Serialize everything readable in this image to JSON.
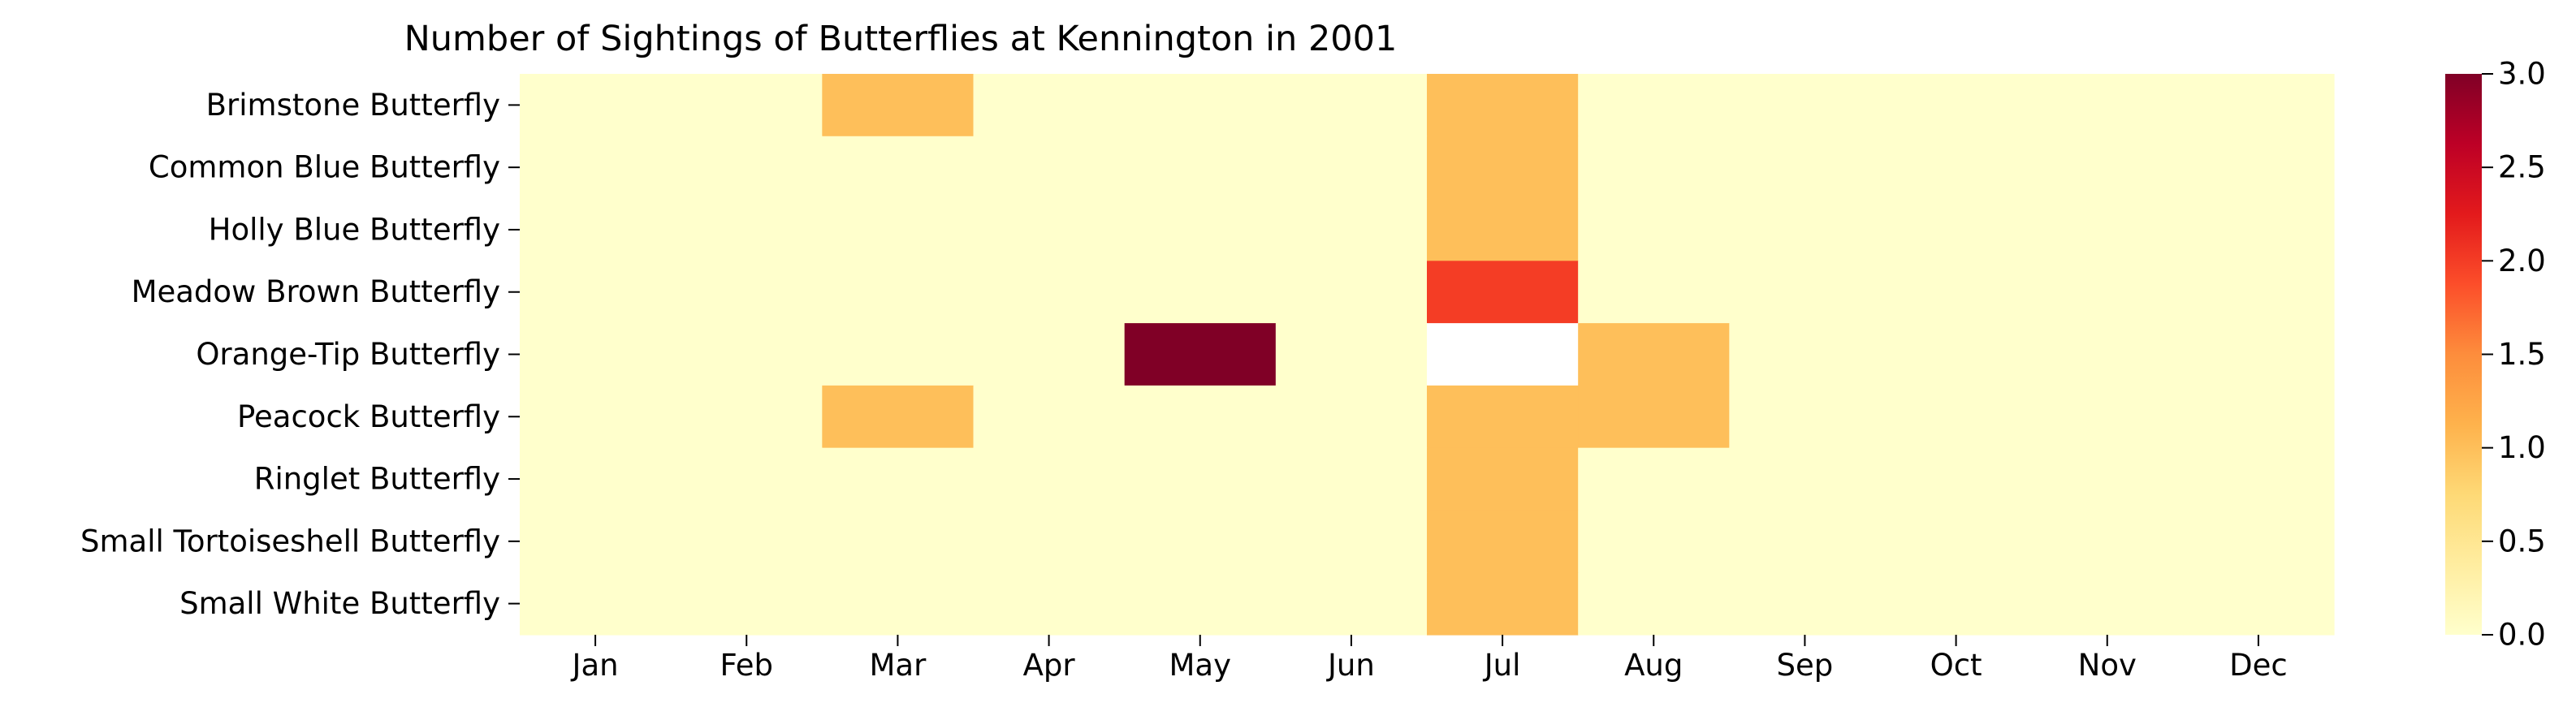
{
  "chart_data": {
    "type": "heatmap",
    "title": "Number of Sightings of Butterflies at Kennington in 2001",
    "xlabel": "",
    "ylabel": "",
    "x_categories": [
      "Jan",
      "Feb",
      "Mar",
      "Apr",
      "May",
      "Jun",
      "Jul",
      "Aug",
      "Sep",
      "Oct",
      "Nov",
      "Dec"
    ],
    "y_categories": [
      "Brimstone Butterfly",
      "Common Blue Butterfly",
      "Holly Blue Butterfly",
      "Meadow Brown Butterfly",
      "Orange-Tip Butterfly",
      "Peacock Butterfly",
      "Ringlet Butterfly",
      "Small Tortoiseshell Butterfly",
      "Small White Butterfly"
    ],
    "values": [
      [
        0,
        0,
        1,
        0,
        0,
        0,
        1,
        0,
        0,
        0,
        0,
        0
      ],
      [
        0,
        0,
        0,
        0,
        0,
        0,
        1,
        0,
        0,
        0,
        0,
        0
      ],
      [
        0,
        0,
        0,
        0,
        0,
        0,
        1,
        0,
        0,
        0,
        0,
        0
      ],
      [
        0,
        0,
        0,
        0,
        0,
        0,
        2,
        0,
        0,
        0,
        0,
        0
      ],
      [
        0,
        0,
        0,
        0,
        3,
        0,
        null,
        1,
        0,
        0,
        0,
        0
      ],
      [
        0,
        0,
        1,
        0,
        0,
        0,
        1,
        1,
        0,
        0,
        0,
        0
      ],
      [
        0,
        0,
        0,
        0,
        0,
        0,
        1,
        0,
        0,
        0,
        0,
        0
      ],
      [
        0,
        0,
        0,
        0,
        0,
        0,
        1,
        0,
        0,
        0,
        0,
        0
      ],
      [
        0,
        0,
        0,
        0,
        0,
        0,
        1,
        0,
        0,
        0,
        0,
        0
      ]
    ],
    "colormap": "YlOrRd",
    "colorbar": {
      "range": [
        0,
        3
      ],
      "ticks": [
        "0.0",
        "0.5",
        "1.0",
        "1.5",
        "2.0",
        "2.5",
        "3.0"
      ]
    },
    "colors": {
      "stops": [
        "#ffffcc",
        "#ffeda0",
        "#fed976",
        "#feb24c",
        "#fd8d3c",
        "#fc4e2a",
        "#e31a1c",
        "#bd0026",
        "#800026"
      ],
      "missing": "#ffffff"
    }
  }
}
